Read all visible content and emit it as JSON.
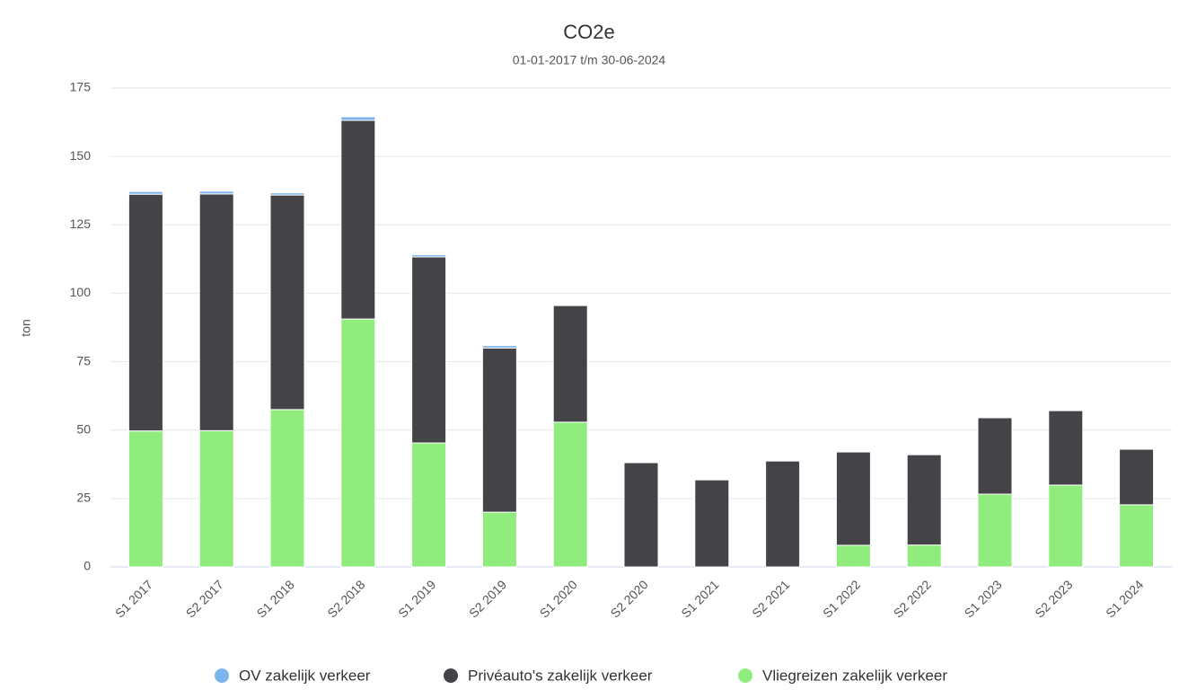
{
  "chart_data": {
    "type": "stacked_bar",
    "title": "CO2e",
    "subtitle": "01-01-2017 t/m 30-06-2024",
    "y_label": "ton",
    "categories": [
      "S1 2017",
      "S2 2017",
      "S1 2018",
      "S2 2018",
      "S1 2019",
      "S2 2019",
      "S1 2020",
      "S2 2020",
      "S1 2021",
      "S2 2021",
      "S1 2022",
      "S2 2022",
      "S1 2023",
      "S2 2023",
      "S1 2024"
    ],
    "series": [
      {
        "name": "OV zakelijk verkeer",
        "color": "#7cb5ec",
        "values": [
          1,
          1,
          0.8,
          1.3,
          0.8,
          0.9,
          0,
          0,
          0,
          0,
          0,
          0,
          0,
          0,
          0
        ]
      },
      {
        "name": "Privéauto's zakelijk verkeer",
        "color": "#434348",
        "values": [
          86.5,
          86.5,
          78.4,
          72.6,
          68,
          60,
          42.6,
          38.1,
          31.8,
          38.7,
          34.1,
          33,
          27.9,
          27.2,
          20.3
        ]
      },
      {
        "name": "Vliegreizen zakelijk verkeer",
        "color": "#90ed7d",
        "values": [
          49.7,
          49.8,
          57.5,
          90.6,
          45.3,
          20,
          52.9,
          0,
          0,
          0,
          7.9,
          8,
          26.6,
          29.9,
          22.7
        ]
      }
    ],
    "ylim": [
      0,
      175
    ],
    "yticks": [
      0,
      25,
      50,
      75,
      100,
      125,
      150,
      175
    ],
    "grid": true
  }
}
